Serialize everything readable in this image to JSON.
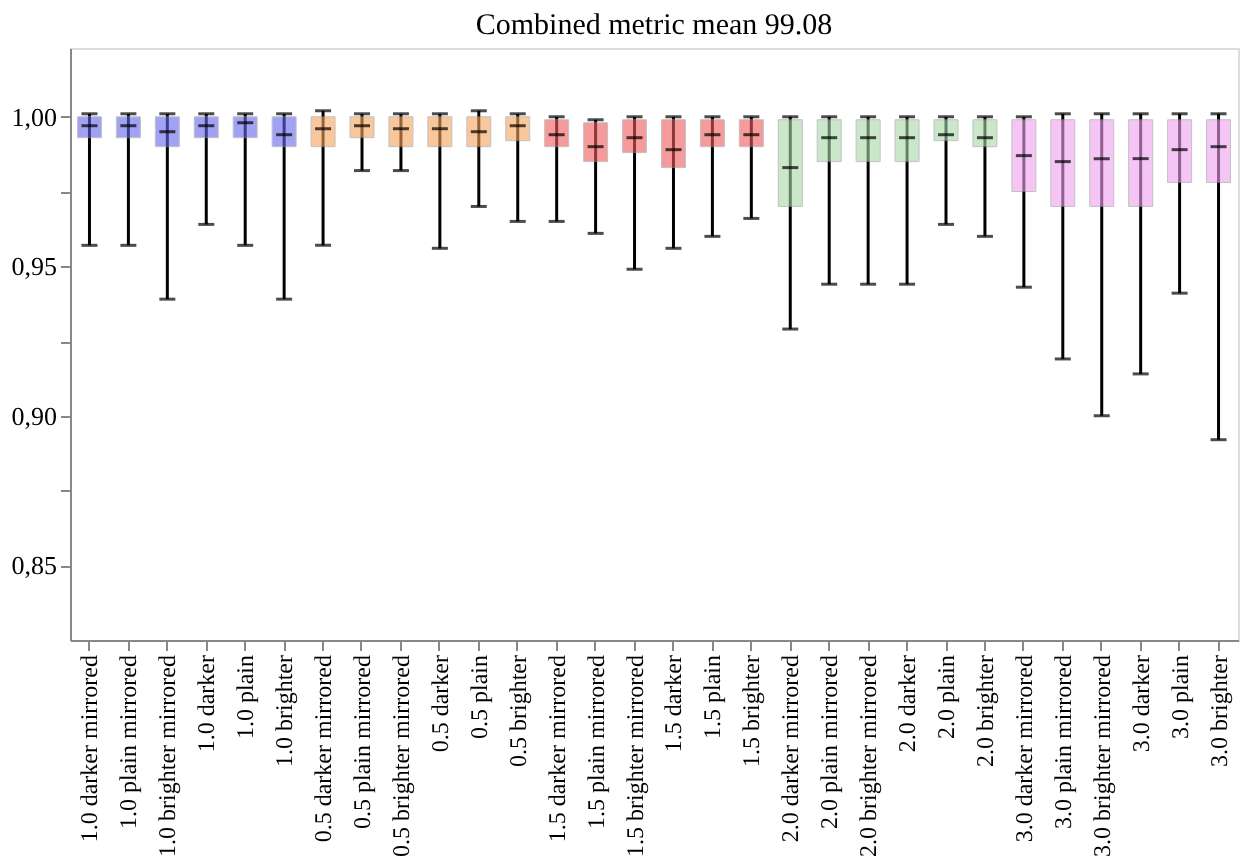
{
  "chart_data": {
    "type": "box",
    "title": "Combined metric mean  99.08",
    "categories": [
      "1.0 darker mirrored",
      "1.0 plain mirrored",
      "1.0 brighter mirrored",
      "1.0 darker",
      "1.0 plain",
      "1.0 brighter",
      "0.5 darker mirrored",
      "0.5 plain mirrored",
      "0.5 brighter mirrored",
      "0.5 darker",
      "0.5 plain",
      "0.5 brighter",
      "1.5 darker mirrored",
      "1.5 plain mirrored",
      "1.5 brighter mirrored",
      "1.5 darker",
      "1.5 plain",
      "1.5 brighter",
      "2.0 darker mirrored",
      "2.0 plain mirrored",
      "2.0 brighter mirrored",
      "2.0 darker",
      "2.0 plain",
      "2.0 brighter",
      "3.0 darker mirrored",
      "3.0 plain mirrored",
      "3.0 brighter mirrored",
      "3.0 darker",
      "3.0 plain",
      "3.0 brighter"
    ],
    "colors": [
      "#6666ee",
      "#6666ee",
      "#6666ee",
      "#6666ee",
      "#6666ee",
      "#6666ee",
      "#f5a35a",
      "#f5a35a",
      "#f5a35a",
      "#f5a35a",
      "#f5a35a",
      "#f5a35a",
      "#f05a5a",
      "#f05a5a",
      "#f05a5a",
      "#f05a5a",
      "#f05a5a",
      "#f05a5a",
      "#a8d8a8",
      "#a8d8a8",
      "#a8d8a8",
      "#a8d8a8",
      "#a8d8a8",
      "#a8d8a8",
      "#f0a0f0",
      "#f0a0f0",
      "#f0a0f0",
      "#f0a0f0",
      "#f0a0f0",
      "#f0a0f0"
    ],
    "boxes": [
      {
        "low": 0.957,
        "q1": 0.993,
        "median": 0.997,
        "q3": 1.0,
        "high": 1.001
      },
      {
        "low": 0.957,
        "q1": 0.993,
        "median": 0.997,
        "q3": 1.0,
        "high": 1.001
      },
      {
        "low": 0.939,
        "q1": 0.99,
        "median": 0.995,
        "q3": 1.0,
        "high": 1.001
      },
      {
        "low": 0.964,
        "q1": 0.993,
        "median": 0.997,
        "q3": 1.0,
        "high": 1.001
      },
      {
        "low": 0.957,
        "q1": 0.993,
        "median": 0.998,
        "q3": 1.0,
        "high": 1.001
      },
      {
        "low": 0.939,
        "q1": 0.99,
        "median": 0.994,
        "q3": 1.0,
        "high": 1.001
      },
      {
        "low": 0.957,
        "q1": 0.99,
        "median": 0.996,
        "q3": 1.0,
        "high": 1.002
      },
      {
        "low": 0.982,
        "q1": 0.993,
        "median": 0.997,
        "q3": 1.0,
        "high": 1.001
      },
      {
        "low": 0.982,
        "q1": 0.99,
        "median": 0.996,
        "q3": 1.0,
        "high": 1.001
      },
      {
        "low": 0.956,
        "q1": 0.99,
        "median": 0.996,
        "q3": 1.0,
        "high": 1.001
      },
      {
        "low": 0.97,
        "q1": 0.99,
        "median": 0.995,
        "q3": 1.0,
        "high": 1.002
      },
      {
        "low": 0.965,
        "q1": 0.992,
        "median": 0.997,
        "q3": 1.0,
        "high": 1.001
      },
      {
        "low": 0.965,
        "q1": 0.99,
        "median": 0.994,
        "q3": 0.999,
        "high": 1.0
      },
      {
        "low": 0.961,
        "q1": 0.985,
        "median": 0.99,
        "q3": 0.998,
        "high": 0.999
      },
      {
        "low": 0.949,
        "q1": 0.988,
        "median": 0.993,
        "q3": 0.999,
        "high": 1.0
      },
      {
        "low": 0.956,
        "q1": 0.983,
        "median": 0.989,
        "q3": 0.999,
        "high": 1.0
      },
      {
        "low": 0.96,
        "q1": 0.99,
        "median": 0.994,
        "q3": 0.999,
        "high": 1.0
      },
      {
        "low": 0.966,
        "q1": 0.99,
        "median": 0.994,
        "q3": 0.999,
        "high": 1.0
      },
      {
        "low": 0.929,
        "q1": 0.97,
        "median": 0.983,
        "q3": 0.999,
        "high": 1.0
      },
      {
        "low": 0.944,
        "q1": 0.985,
        "median": 0.993,
        "q3": 0.999,
        "high": 1.0
      },
      {
        "low": 0.944,
        "q1": 0.985,
        "median": 0.993,
        "q3": 0.999,
        "high": 1.0
      },
      {
        "low": 0.944,
        "q1": 0.985,
        "median": 0.993,
        "q3": 0.999,
        "high": 1.0
      },
      {
        "low": 0.964,
        "q1": 0.992,
        "median": 0.994,
        "q3": 0.999,
        "high": 1.0
      },
      {
        "low": 0.96,
        "q1": 0.99,
        "median": 0.993,
        "q3": 0.999,
        "high": 1.0
      },
      {
        "low": 0.943,
        "q1": 0.975,
        "median": 0.987,
        "q3": 0.999,
        "high": 1.0
      },
      {
        "low": 0.919,
        "q1": 0.97,
        "median": 0.985,
        "q3": 0.999,
        "high": 1.001
      },
      {
        "low": 0.9,
        "q1": 0.97,
        "median": 0.986,
        "q3": 0.999,
        "high": 1.001
      },
      {
        "low": 0.914,
        "q1": 0.97,
        "median": 0.986,
        "q3": 0.999,
        "high": 1.001
      },
      {
        "low": 0.941,
        "q1": 0.978,
        "median": 0.989,
        "q3": 0.999,
        "high": 1.001
      },
      {
        "low": 0.892,
        "q1": 0.978,
        "median": 0.99,
        "q3": 0.999,
        "high": 1.001
      }
    ],
    "ylim": [
      0.825,
      1.023
    ],
    "yticks": [
      {
        "value": 0.85,
        "label": "0,85"
      },
      {
        "value": 0.875,
        "label": null
      },
      {
        "value": 0.9,
        "label": "0,90"
      },
      {
        "value": 0.925,
        "label": null
      },
      {
        "value": 0.95,
        "label": "0,95"
      },
      {
        "value": 0.975,
        "label": null
      },
      {
        "value": 1.0,
        "label": "1,00"
      }
    ],
    "grid": false,
    "legend": false
  }
}
